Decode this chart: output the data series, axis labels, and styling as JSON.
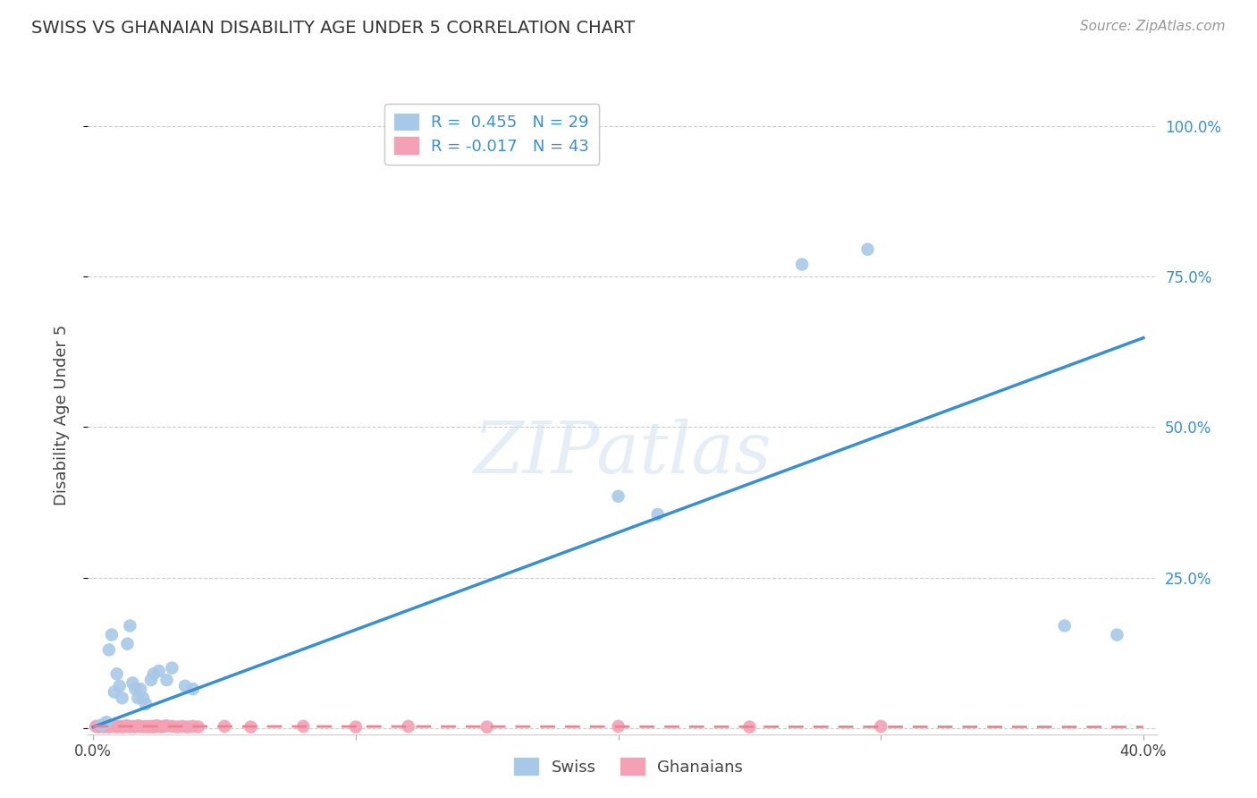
{
  "title": "SWISS VS GHANAIAN DISABILITY AGE UNDER 5 CORRELATION CHART",
  "source": "Source: ZipAtlas.com",
  "ylabel": "Disability Age Under 5",
  "swiss_R": 0.455,
  "swiss_N": 29,
  "ghanaian_R": -0.017,
  "ghanaian_N": 43,
  "swiss_color": "#a8c8e8",
  "ghanaian_color": "#f4a0b5",
  "trend_swiss_color": "#3a8fd1",
  "trend_ghanaian_color": "#f08090",
  "background_color": "#ffffff",
  "grid_color": "#cccccc",
  "swiss_x": [
    0.003,
    0.005,
    0.006,
    0.007,
    0.008,
    0.009,
    0.01,
    0.011,
    0.013,
    0.014,
    0.015,
    0.016,
    0.017,
    0.018,
    0.019,
    0.02,
    0.022,
    0.023,
    0.025,
    0.028,
    0.03,
    0.035,
    0.038,
    0.2,
    0.215,
    0.27,
    0.295,
    0.37,
    0.39
  ],
  "swiss_y": [
    0.005,
    0.01,
    0.13,
    0.155,
    0.06,
    0.09,
    0.07,
    0.05,
    0.14,
    0.17,
    0.075,
    0.065,
    0.05,
    0.065,
    0.05,
    0.04,
    0.08,
    0.09,
    0.095,
    0.08,
    0.1,
    0.07,
    0.065,
    0.385,
    0.355,
    0.77,
    0.795,
    0.17,
    0.155
  ],
  "ghanaian_x": [
    0.001,
    0.002,
    0.003,
    0.004,
    0.005,
    0.006,
    0.007,
    0.008,
    0.009,
    0.01,
    0.011,
    0.012,
    0.013,
    0.014,
    0.015,
    0.016,
    0.017,
    0.018,
    0.019,
    0.02,
    0.021,
    0.022,
    0.023,
    0.024,
    0.025,
    0.026,
    0.027,
    0.028,
    0.03,
    0.032,
    0.034,
    0.036,
    0.038,
    0.04,
    0.05,
    0.06,
    0.08,
    0.1,
    0.12,
    0.15,
    0.2,
    0.25,
    0.3
  ],
  "ghanaian_y": [
    0.003,
    0.002,
    0.003,
    0.002,
    0.004,
    0.002,
    0.003,
    0.004,
    0.002,
    0.003,
    0.002,
    0.003,
    0.004,
    0.002,
    0.003,
    0.002,
    0.004,
    0.003,
    0.002,
    0.003,
    0.002,
    0.003,
    0.002,
    0.004,
    0.003,
    0.002,
    0.003,
    0.004,
    0.003,
    0.002,
    0.003,
    0.002,
    0.003,
    0.002,
    0.003,
    0.002,
    0.003,
    0.002,
    0.003,
    0.002,
    0.003,
    0.002,
    0.003
  ],
  "swiss_trend_x": [
    0.0,
    0.4
  ],
  "swiss_trend_y": [
    0.002,
    0.648
  ],
  "ghanaian_trend_x": [
    0.0,
    0.4
  ],
  "ghanaian_trend_y": [
    0.003,
    0.002
  ],
  "xlim": [
    -0.002,
    0.405
  ],
  "ylim": [
    -0.01,
    1.05
  ],
  "yticks": [
    0.0,
    0.25,
    0.5,
    0.75,
    1.0
  ],
  "ytick_labels": [
    "",
    "25.0%",
    "50.0%",
    "75.0%",
    "100.0%"
  ],
  "xtick_positions": [
    0.0,
    0.1,
    0.2,
    0.3,
    0.4
  ],
  "xtick_labels": [
    "0.0%",
    "",
    "",
    "",
    "40.0%"
  ]
}
